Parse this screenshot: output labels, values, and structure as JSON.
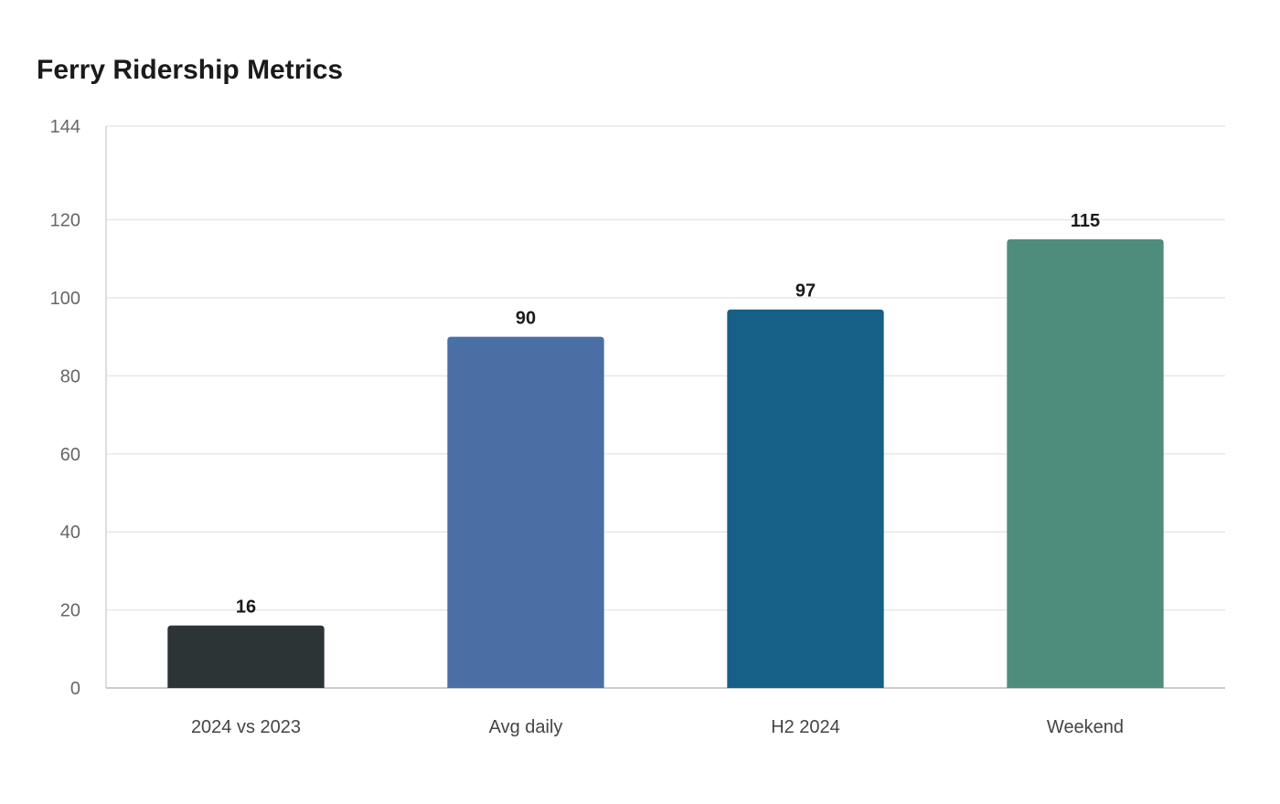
{
  "chart_data": {
    "type": "bar",
    "title": "Ferry Ridership Metrics",
    "xlabel": "",
    "ylabel": "",
    "categories": [
      "2024 vs 2023",
      "Avg daily",
      "H2 2024",
      "Weekend"
    ],
    "values": [
      16,
      90,
      97,
      115
    ],
    "colors": [
      "#2d3436",
      "#4a6fa5",
      "#166088",
      "#4e8d7c"
    ],
    "ylim": [
      0,
      144
    ],
    "yticks": [
      0,
      20,
      40,
      60,
      80,
      100,
      120,
      144
    ],
    "grid": true,
    "legend": "none"
  }
}
